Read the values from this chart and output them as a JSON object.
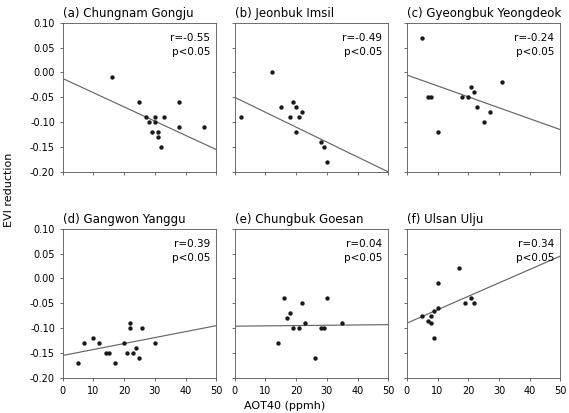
{
  "subplots": [
    {
      "label": "(a) Chungnam Gongju",
      "r": -0.55,
      "p": "<0.05",
      "x": [
        16,
        25,
        27,
        28,
        29,
        30,
        30,
        31,
        31,
        32,
        33,
        38,
        38,
        46
      ],
      "y": [
        -0.01,
        -0.06,
        -0.09,
        -0.1,
        -0.12,
        -0.09,
        -0.1,
        -0.12,
        -0.13,
        -0.15,
        -0.09,
        -0.06,
        -0.11,
        -0.11
      ],
      "line_x": [
        0,
        50
      ],
      "line_y": [
        -0.012,
        -0.155
      ]
    },
    {
      "label": "(b) Jeonbuk Imsil",
      "r": -0.49,
      "p": "<0.05",
      "x": [
        2,
        12,
        15,
        18,
        19,
        20,
        20,
        21,
        22,
        28,
        29,
        30
      ],
      "y": [
        -0.09,
        -0.0,
        -0.07,
        -0.09,
        -0.06,
        -0.07,
        -0.12,
        -0.09,
        -0.08,
        -0.14,
        -0.15,
        -0.18
      ],
      "line_x": [
        0,
        50
      ],
      "line_y": [
        -0.05,
        -0.2
      ]
    },
    {
      "label": "(c) Gyeongbuk Yeongdeok",
      "r": -0.24,
      "p": "<0.05",
      "x": [
        5,
        7,
        8,
        10,
        18,
        20,
        21,
        22,
        23,
        25,
        27,
        31
      ],
      "y": [
        0.07,
        -0.05,
        -0.05,
        -0.12,
        -0.05,
        -0.05,
        -0.03,
        -0.04,
        -0.07,
        -0.1,
        -0.08,
        -0.02
      ],
      "line_x": [
        0,
        50
      ],
      "line_y": [
        -0.005,
        -0.115
      ]
    },
    {
      "label": "(d) Gangwon Yanggu",
      "r": 0.39,
      "p": "<0.05",
      "x": [
        5,
        7,
        10,
        12,
        14,
        15,
        17,
        20,
        21,
        22,
        22,
        23,
        24,
        25,
        26,
        30
      ],
      "y": [
        -0.17,
        -0.13,
        -0.12,
        -0.13,
        -0.15,
        -0.15,
        -0.17,
        -0.13,
        -0.15,
        -0.09,
        -0.1,
        -0.15,
        -0.14,
        -0.16,
        -0.1,
        -0.13
      ],
      "line_x": [
        0,
        50
      ],
      "line_y": [
        -0.155,
        -0.095
      ]
    },
    {
      "label": "(e) Chungbuk Goesan",
      "r": 0.04,
      "p": "<0.05",
      "x": [
        14,
        16,
        17,
        18,
        19,
        21,
        22,
        23,
        26,
        28,
        29,
        30,
        35
      ],
      "y": [
        -0.13,
        -0.04,
        -0.08,
        -0.07,
        -0.1,
        -0.1,
        -0.05,
        -0.09,
        -0.16,
        -0.1,
        -0.1,
        -0.04,
        -0.09
      ],
      "line_x": [
        0,
        50
      ],
      "line_y": [
        -0.096,
        -0.093
      ]
    },
    {
      "label": "(f) Ulsan Ulju",
      "r": 0.34,
      "p": "<0.05",
      "x": [
        5,
        7,
        8,
        8,
        9,
        9,
        10,
        10,
        17,
        19,
        21,
        22
      ],
      "y": [
        -0.075,
        -0.085,
        -0.09,
        -0.075,
        -0.065,
        -0.12,
        -0.06,
        -0.01,
        0.02,
        -0.05,
        -0.04,
        -0.05
      ],
      "line_x": [
        0,
        50
      ],
      "line_y": [
        -0.09,
        0.045
      ]
    }
  ],
  "xlim": [
    0,
    50
  ],
  "ylim": [
    -0.2,
    0.1
  ],
  "yticks": [
    -0.2,
    -0.15,
    -0.1,
    -0.05,
    0.0,
    0.05,
    0.1
  ],
  "ytick_labels": [
    "-0.20",
    "-0.15",
    "-0.10",
    "-0.05",
    "0.00",
    "0.05",
    "0.10"
  ],
  "xticks": [
    0,
    10,
    20,
    30,
    40,
    50
  ],
  "xtick_labels": [
    "0",
    "10",
    "20",
    "30",
    "40",
    "50"
  ],
  "xlabel": "AOT40 (ppmh)",
  "ylabel": "EVI reduction",
  "marker_color": "#1a1a1a",
  "line_color": "#666666",
  "bg_color": "#ffffff",
  "title_fontsize": 8.5,
  "label_fontsize": 8,
  "tick_fontsize": 7,
  "annot_fontsize": 7.5
}
